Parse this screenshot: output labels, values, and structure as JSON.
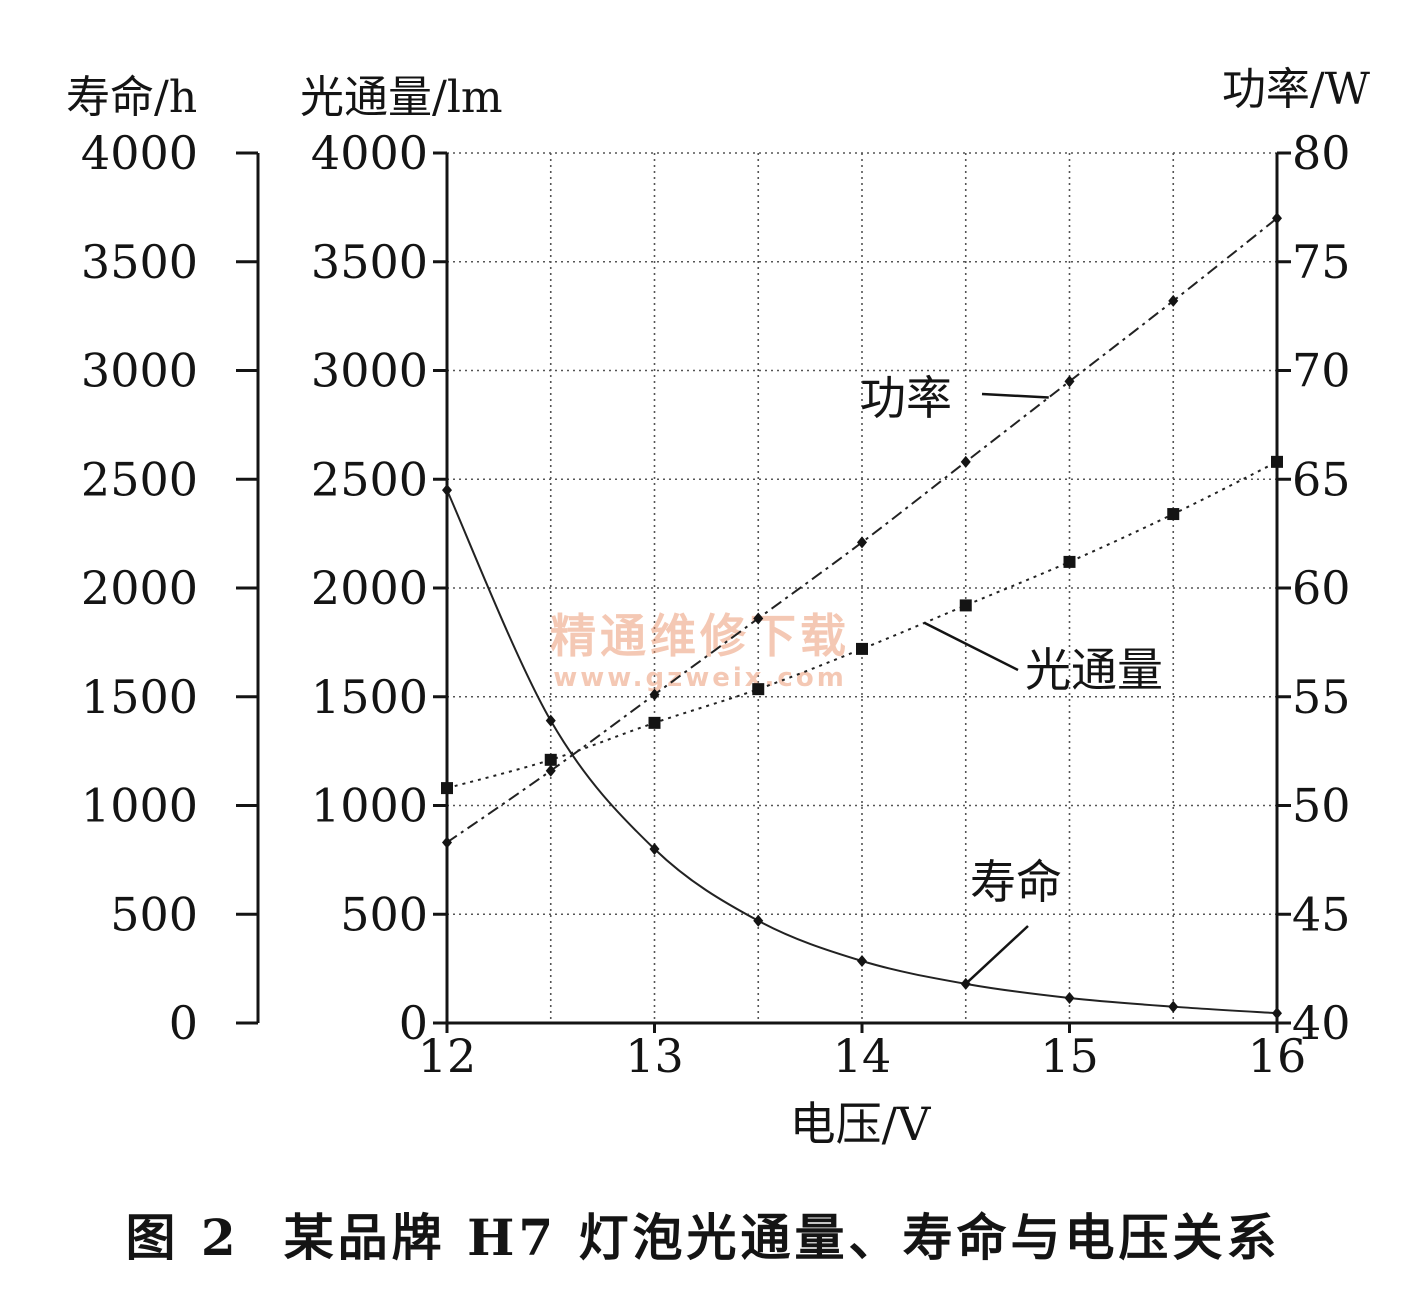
{
  "chart_data": {
    "type": "line",
    "caption": {
      "figure_number": "图 2",
      "text": "某品牌 H7 灯泡光通量、寿命与电压关系"
    },
    "xlabel": "电压/V",
    "xlim": [
      12,
      16
    ],
    "x_ticks": [
      "12",
      "13",
      "14",
      "15",
      "16"
    ],
    "axes": {
      "life": {
        "label": "寿命/h",
        "lim": [
          0,
          4000
        ],
        "ticks": [
          "0",
          "500",
          "1000",
          "1500",
          "2000",
          "2500",
          "3000",
          "3500",
          "4000"
        ]
      },
      "flux": {
        "label": "光通量/lm",
        "lim": [
          0,
          4000
        ],
        "ticks": [
          "0",
          "500",
          "1000",
          "1500",
          "2000",
          "2500",
          "3000",
          "3500",
          "4000"
        ]
      },
      "power": {
        "label": "功率/W",
        "lim": [
          40,
          80
        ],
        "ticks": [
          "40",
          "45",
          "50",
          "55",
          "60",
          "65",
          "70",
          "75",
          "80"
        ]
      }
    },
    "grid": true,
    "x": [
      12,
      12.5,
      13,
      13.5,
      14,
      14.5,
      15,
      15.5,
      16
    ],
    "series": [
      {
        "name": "功率",
        "axis": "power",
        "marker": "diamond",
        "line": "dash-dot",
        "values": [
          48.3,
          51.6,
          55.1,
          58.6,
          62.1,
          65.8,
          69.5,
          73.2,
          77.0
        ]
      },
      {
        "name": "光通量",
        "axis": "flux",
        "marker": "square",
        "line": "dotted",
        "values": [
          1080,
          1210,
          1380,
          1535,
          1720,
          1920,
          2120,
          2340,
          2580
        ]
      },
      {
        "name": "寿命",
        "axis": "life",
        "marker": "diamond",
        "line": "solid",
        "values": [
          2450,
          1390,
          800,
          470,
          285,
          180,
          115,
          75,
          45
        ]
      }
    ],
    "watermark": {
      "line1": "精通维修下载",
      "line2": "www.gzweix.com"
    }
  }
}
